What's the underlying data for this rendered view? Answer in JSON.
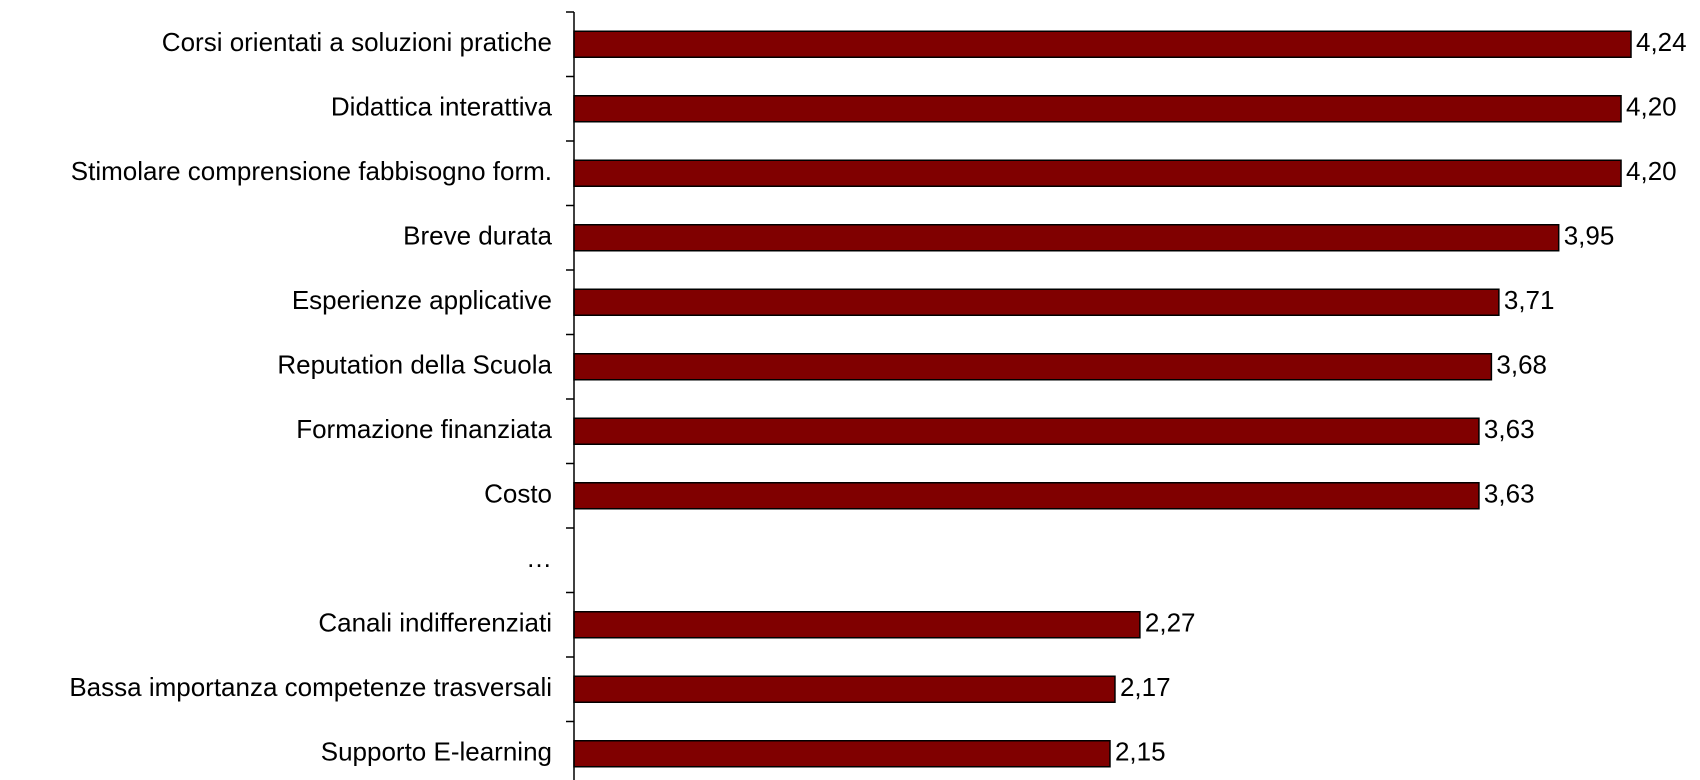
{
  "chart_data": {
    "type": "bar",
    "orientation": "horizontal",
    "categories": [
      "Corsi orientati a soluzioni pratiche",
      "Didattica interattiva",
      "Stimolare comprensione fabbisogno form.",
      "Breve durata",
      "Esperienze applicative",
      "Reputation della Scuola",
      "Formazione finanziata",
      "Costo",
      "…",
      "Canali indifferenziati",
      "Bassa importanza competenze trasversali",
      "Supporto E-learning"
    ],
    "values": [
      4.24,
      4.2,
      4.2,
      3.95,
      3.71,
      3.68,
      3.63,
      3.63,
      null,
      2.27,
      2.17,
      2.15
    ],
    "data_labels": [
      "4,24",
      "4,20",
      "4,20",
      "3,95",
      "3,71",
      "3,68",
      "3,63",
      "3,63",
      "",
      "2,27",
      "2,17",
      "2,15"
    ],
    "title": "",
    "xlabel": "",
    "ylabel": "",
    "xlim": [
      0,
      4.24
    ],
    "grid": false,
    "legend": "none",
    "bar_color": "#800000",
    "bar_border_color": "#000000"
  }
}
